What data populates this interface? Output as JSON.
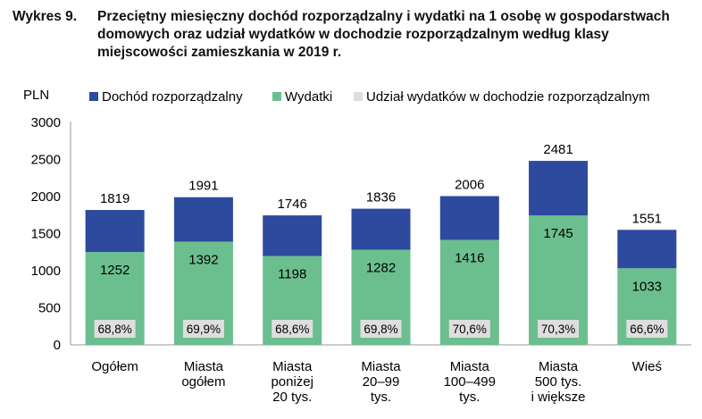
{
  "title_label": "Wykres 9.",
  "title": "Przeciętny miesięczny dochód rozporządzalny i wydatki na 1 osobę w gospodarstwach domowych oraz udział wydatków w dochodzie rozporządzalnym według klasy miejscowości zamieszkania w 2019 r.",
  "colors": {
    "income": "#2e4a9e",
    "expenses": "#6bbf8e",
    "share_box": "#dedede"
  },
  "chart_data": {
    "type": "bar",
    "ylabel": "PLN",
    "ylim": [
      0,
      3000
    ],
    "yticks": [
      "0",
      "500",
      "1000",
      "1500",
      "2000",
      "2500",
      "3000"
    ],
    "categories": [
      [
        "Ogółem"
      ],
      [
        "Miasta",
        "ogółem"
      ],
      [
        "Miasta",
        "poniżej",
        "20 tys."
      ],
      [
        "Miasta",
        "20–99",
        "tys."
      ],
      [
        "Miasta",
        "100–499",
        "tys."
      ],
      [
        "Miasta",
        "500 tys.",
        "i większe"
      ],
      [
        "Wieś"
      ]
    ],
    "series": [
      {
        "name": "Dochód rozporządzalny",
        "values": [
          1819,
          1991,
          1746,
          1836,
          2006,
          2481,
          1551
        ]
      },
      {
        "name": "Wydatki",
        "values": [
          1252,
          1392,
          1198,
          1282,
          1416,
          1745,
          1033
        ]
      },
      {
        "name": "Udział wydatków w dochodzie rozporządzalnym",
        "values": [
          "68,8%",
          "69,9%",
          "68,6%",
          "69,8%",
          "70,6%",
          "70,3%",
          "66,6%"
        ]
      }
    ],
    "legend_position": "top"
  }
}
